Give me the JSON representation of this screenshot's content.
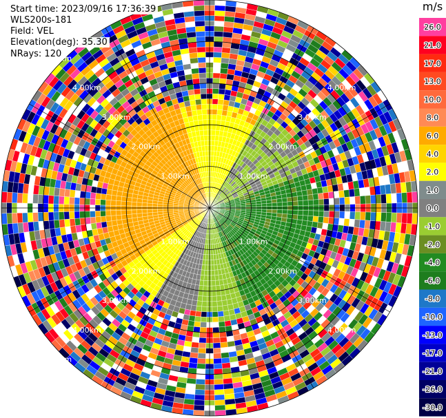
{
  "header": {
    "start_time": "Start time: 2023/09/16 17:36:39",
    "instrument": "WLS200s-181",
    "field": "Field: VEL",
    "elevation": "Elevation(deg): 35.30",
    "nrays": "NRays: 120"
  },
  "colorbar": {
    "unit": "m/s",
    "levels": [
      {
        "label": "26.0",
        "color": "#ff3fa0"
      },
      {
        "label": "21.0",
        "color": "#ff0020"
      },
      {
        "label": "17.0",
        "color": "#ff2a10"
      },
      {
        "label": "13.0",
        "color": "#ff4a20"
      },
      {
        "label": "10.0",
        "color": "#ff6a3c"
      },
      {
        "label": "8.0",
        "color": "#ff8a55"
      },
      {
        "label": "6.0",
        "color": "#ffaa00"
      },
      {
        "label": "4.0",
        "color": "#ffd400"
      },
      {
        "label": "2.0",
        "color": "#ffff00"
      },
      {
        "label": "1.0",
        "color": "#7f8c8c"
      },
      {
        "label": "0.0",
        "color": "#808080"
      },
      {
        "label": "-1.0",
        "color": "#9acd32"
      },
      {
        "label": "-2.0",
        "color": "#6b8e23"
      },
      {
        "label": "-4.0",
        "color": "#228b22"
      },
      {
        "label": "-6.0",
        "color": "#1e7d1e"
      },
      {
        "label": "-8.0",
        "color": "#1e78c8"
      },
      {
        "label": "-10.0",
        "color": "#1e64ff"
      },
      {
        "label": "-13.0",
        "color": "#0000ff"
      },
      {
        "label": "-17.0",
        "color": "#0000c8"
      },
      {
        "label": "-21.0",
        "color": "#000096"
      },
      {
        "label": "-26.0",
        "color": "#000064"
      },
      {
        "label": "-30.0",
        "color": "#000046"
      }
    ]
  },
  "chart_data": {
    "type": "heatmap",
    "subtype": "polar-ppi",
    "field": "VEL",
    "unit": "m/s",
    "nrays": 120,
    "elevation_deg": 35.3,
    "range_ring_labels": [
      "1.00km",
      "2.00km",
      "3.00km",
      "4.00km",
      "5.00km"
    ],
    "range_rings_km": [
      1.0,
      2.0,
      3.0,
      4.0,
      5.0
    ],
    "valid_range_km": 2.5,
    "max_range_km": 5.0,
    "pattern": {
      "northwest_west": "positive 4 to 6 m/s (orange)",
      "southwest": "positive 2 to 4 m/s (yellow)",
      "south_southwest": "~0 m/s (gray)",
      "south": "-1 to -2 m/s (light green)",
      "southeast_east": "-2 to -4 m/s (green)",
      "northeast": "-1 to -2 m/s (light green / gray)",
      "north": "positive 2 to 4 m/s (yellow)",
      "beyond_valid_range": "noise across all colorbar levels"
    }
  }
}
